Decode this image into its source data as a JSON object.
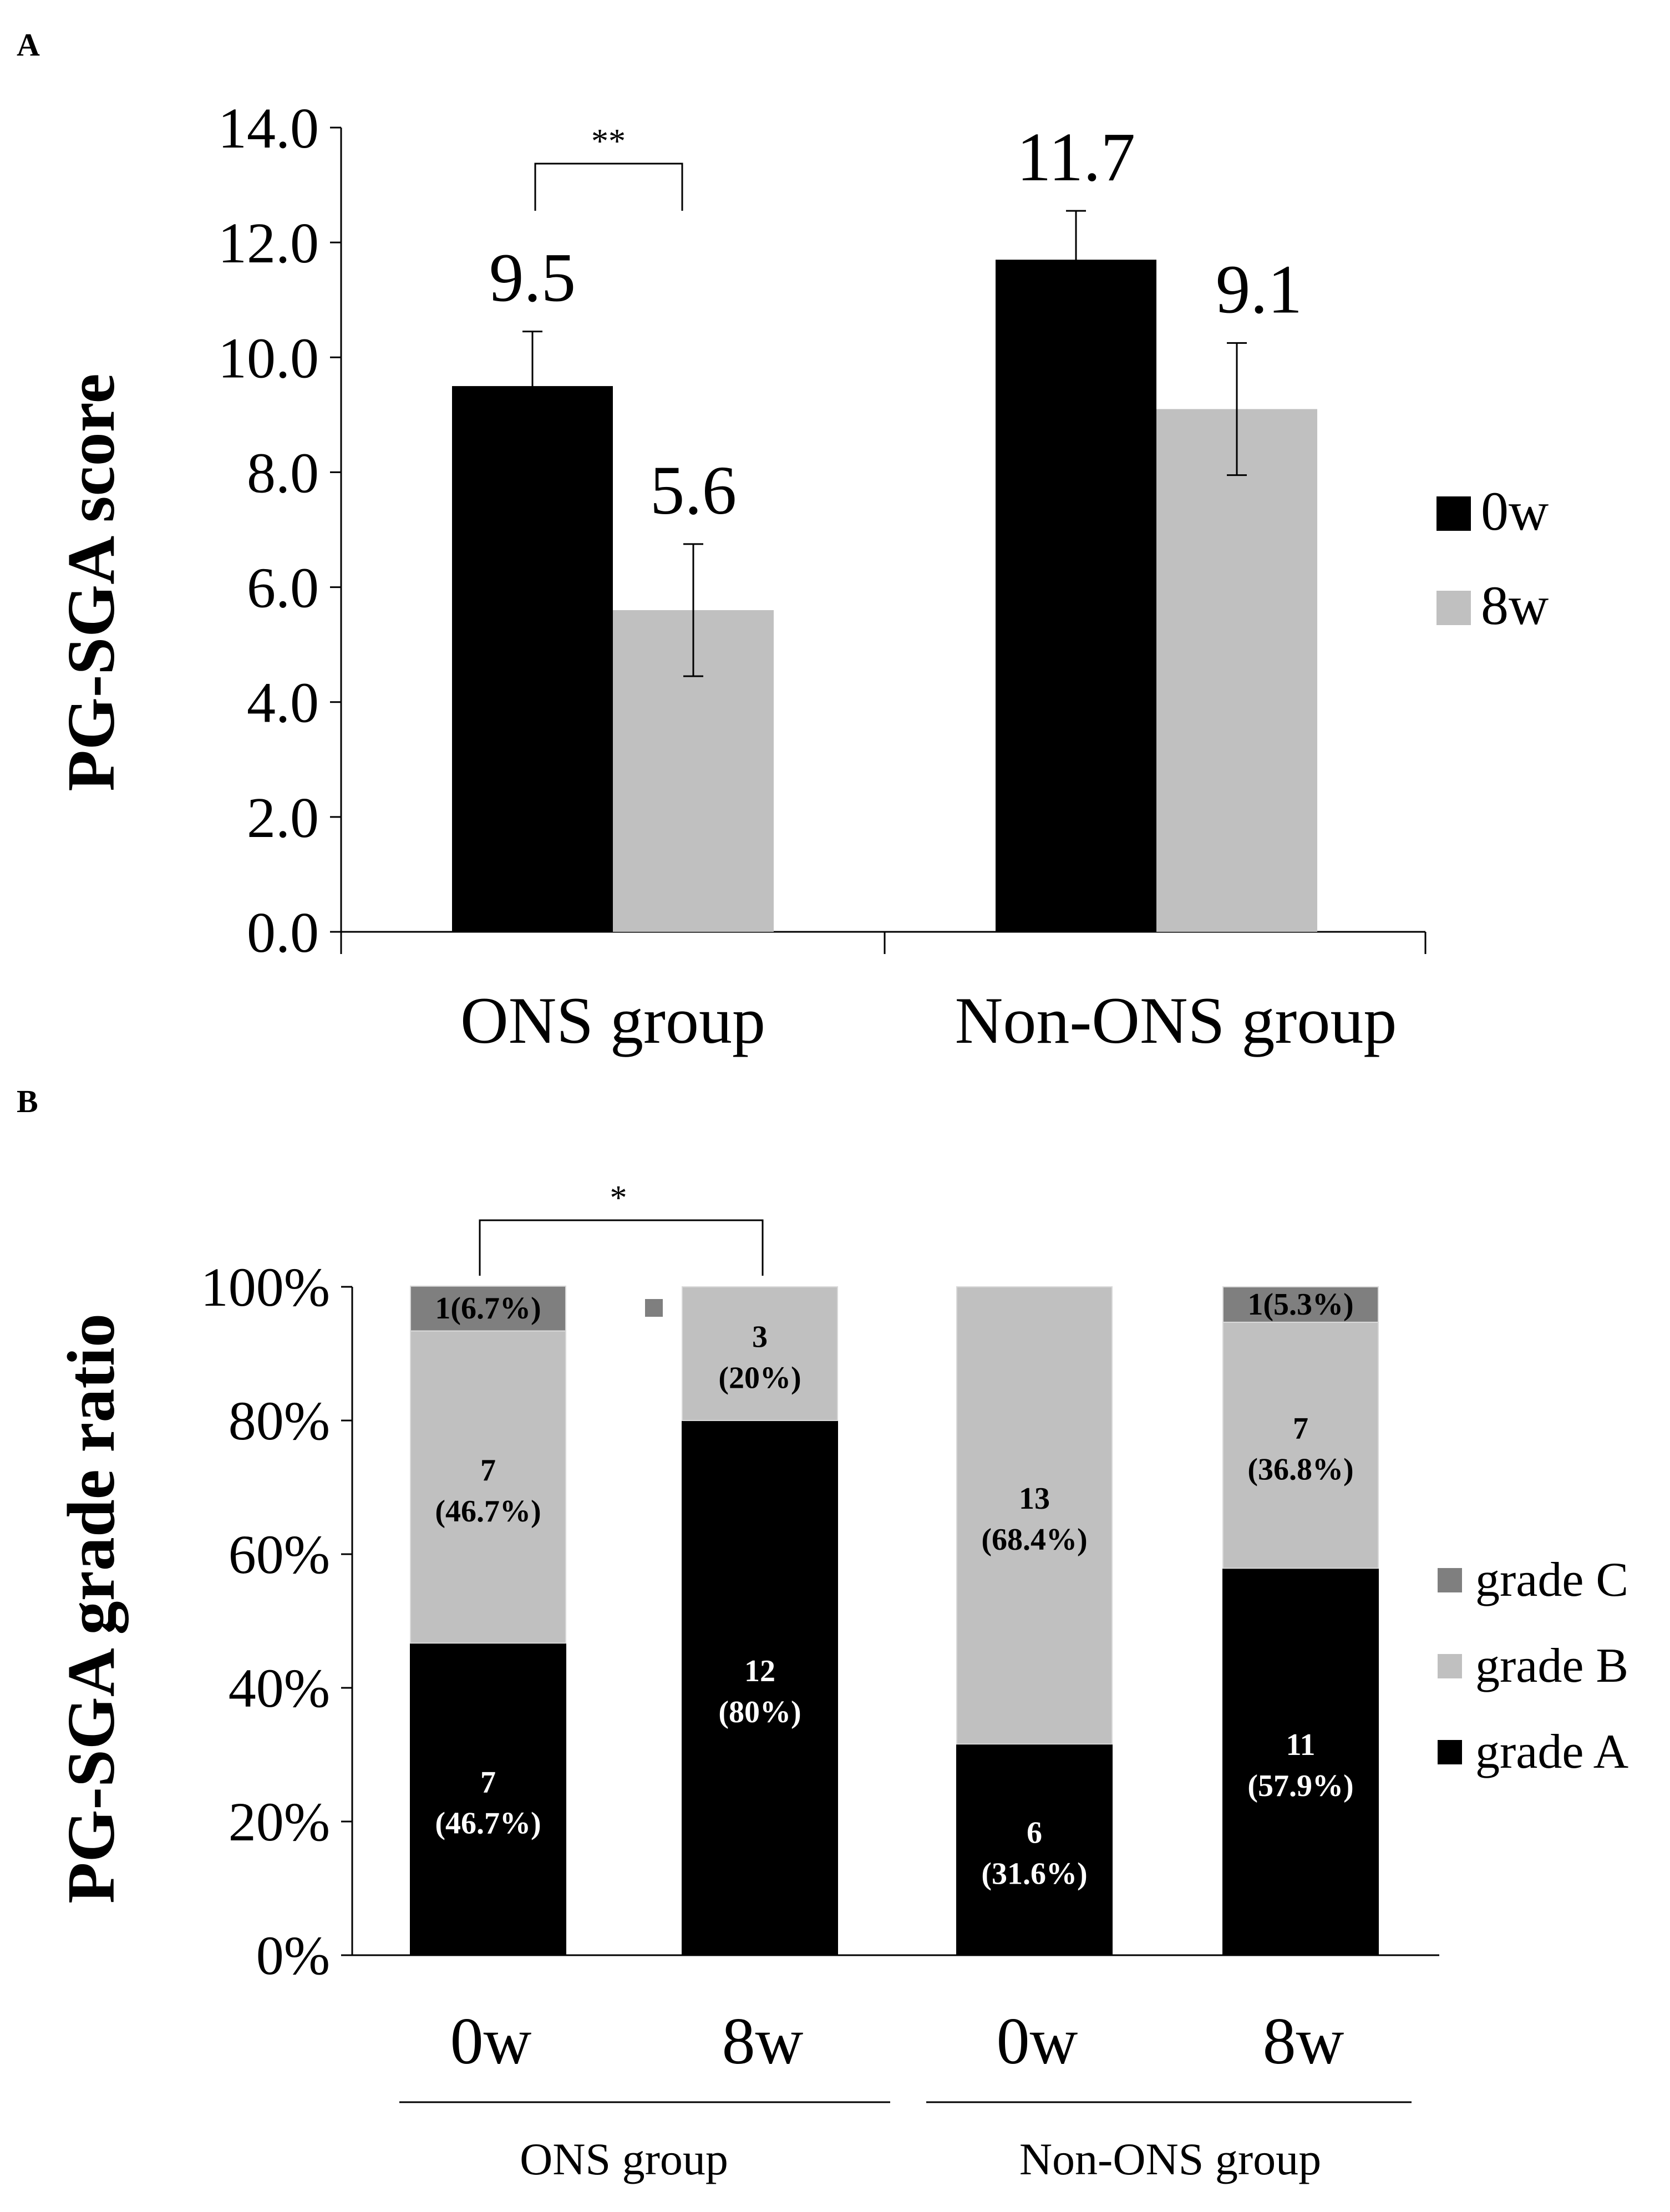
{
  "panel_a_label": "A",
  "panel_b_label": "B",
  "colors": {
    "black": "#000000",
    "light_gray": "#c0c0c0",
    "dark_gray": "#7f7f7f"
  },
  "chart_data": [
    {
      "type": "bar",
      "title": "",
      "xlabel": "",
      "ylabel": "PG-SGA score",
      "ylim": [
        0,
        14
      ],
      "yticks": [
        "0.0",
        "2.0",
        "4.0",
        "6.0",
        "8.0",
        "10.0",
        "12.0",
        "14.0"
      ],
      "categories": [
        "ONS group",
        "Non-ONS group"
      ],
      "series": [
        {
          "name": "0w",
          "values": [
            9.5,
            11.7
          ],
          "errors": [
            0.95,
            0.85
          ],
          "labels": [
            "9.5",
            "11.7"
          ],
          "color": "#000000"
        },
        {
          "name": "8w",
          "values": [
            5.6,
            9.1
          ],
          "errors": [
            1.15,
            1.15
          ],
          "labels": [
            "5.6",
            "9.1"
          ],
          "color": "#c0c0c0"
        }
      ],
      "significance": {
        "between": "ONS group 0w vs 8w",
        "label": "**"
      },
      "legend": {
        "position": "right",
        "entries": [
          "0w",
          "8w"
        ]
      }
    },
    {
      "type": "bar",
      "stacked": true,
      "title": "",
      "xlabel": "",
      "ylabel": "PG-SGA grade ratio",
      "ylim": [
        0,
        100
      ],
      "yticks": [
        "0%",
        "20%",
        "40%",
        "60%",
        "80%",
        "100%"
      ],
      "categories": [
        "0w",
        "8w",
        "0w",
        "8w"
      ],
      "groups": [
        "ONS group",
        "Non-ONS group"
      ],
      "series": [
        {
          "name": "grade A",
          "color": "#000000",
          "values": [
            46.7,
            80,
            31.6,
            57.9
          ],
          "labels": [
            [
              "7",
              "(46.7%)"
            ],
            [
              "12",
              "(80%)"
            ],
            [
              "6",
              "(31.6%)"
            ],
            [
              "11",
              "(57.9%)"
            ]
          ]
        },
        {
          "name": "grade B",
          "color": "#c0c0c0",
          "values": [
            46.7,
            20,
            68.4,
            36.8
          ],
          "labels": [
            [
              "7",
              "(46.7%)"
            ],
            [
              "3",
              "(20%)"
            ],
            [
              "13",
              "(68.4%)"
            ],
            [
              "7",
              "(36.8%)"
            ]
          ]
        },
        {
          "name": "grade C",
          "color": "#7f7f7f",
          "values": [
            6.7,
            0,
            0,
            5.3
          ],
          "labels": [
            [
              "1(6.7%)"
            ],
            [],
            [],
            [
              "1(5.3%)"
            ]
          ]
        }
      ],
      "significance": {
        "between": "ONS group 0w vs 8w",
        "label": "*"
      },
      "legend": {
        "position": "right",
        "entries": [
          "grade C",
          "grade B",
          "grade A"
        ]
      }
    }
  ]
}
